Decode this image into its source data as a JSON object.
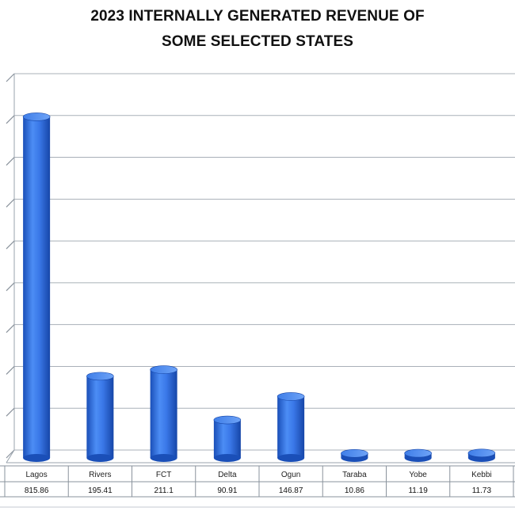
{
  "chart_data": {
    "type": "bar",
    "title_lines": [
      "2023 INTERNALLY GENERATED REVENUE OF",
      "SOME SELECTED STATES"
    ],
    "categories": [
      "Lagos",
      "Rivers",
      "FCT",
      "Delta",
      "Ogun",
      "Taraba",
      "Yobe",
      "Kebbi"
    ],
    "values": [
      815.86,
      195.41,
      211.1,
      90.91,
      146.87,
      10.86,
      11.19,
      11.73
    ],
    "value_labels": [
      "815.86",
      "195.41",
      "211.1",
      "90.91",
      "146.87",
      "10.86",
      "11.19",
      "11.73"
    ],
    "ylim": [
      0,
      900
    ],
    "grid": true,
    "bar_color": "#2e6fe0",
    "data_table": true
  }
}
